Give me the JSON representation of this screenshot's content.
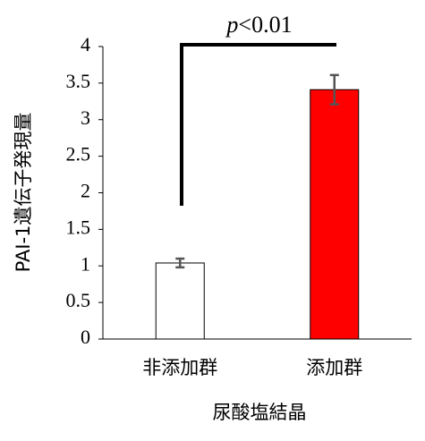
{
  "chart_data": {
    "type": "bar",
    "annotation": "p<0.01",
    "y_label": "PAI-1遺伝子発現量",
    "x_label": "尿酸塩結晶",
    "categories": [
      "非添加群",
      "添加群"
    ],
    "values": [
      1.04,
      3.41
    ],
    "errors": [
      0.06,
      0.2
    ],
    "colors": [
      "#ffffff",
      "#ff0000"
    ],
    "ylim": [
      0,
      4
    ],
    "yticks": [
      0,
      0.5,
      1,
      1.5,
      2,
      2.5,
      3,
      3.5,
      4
    ],
    "grid": false
  }
}
